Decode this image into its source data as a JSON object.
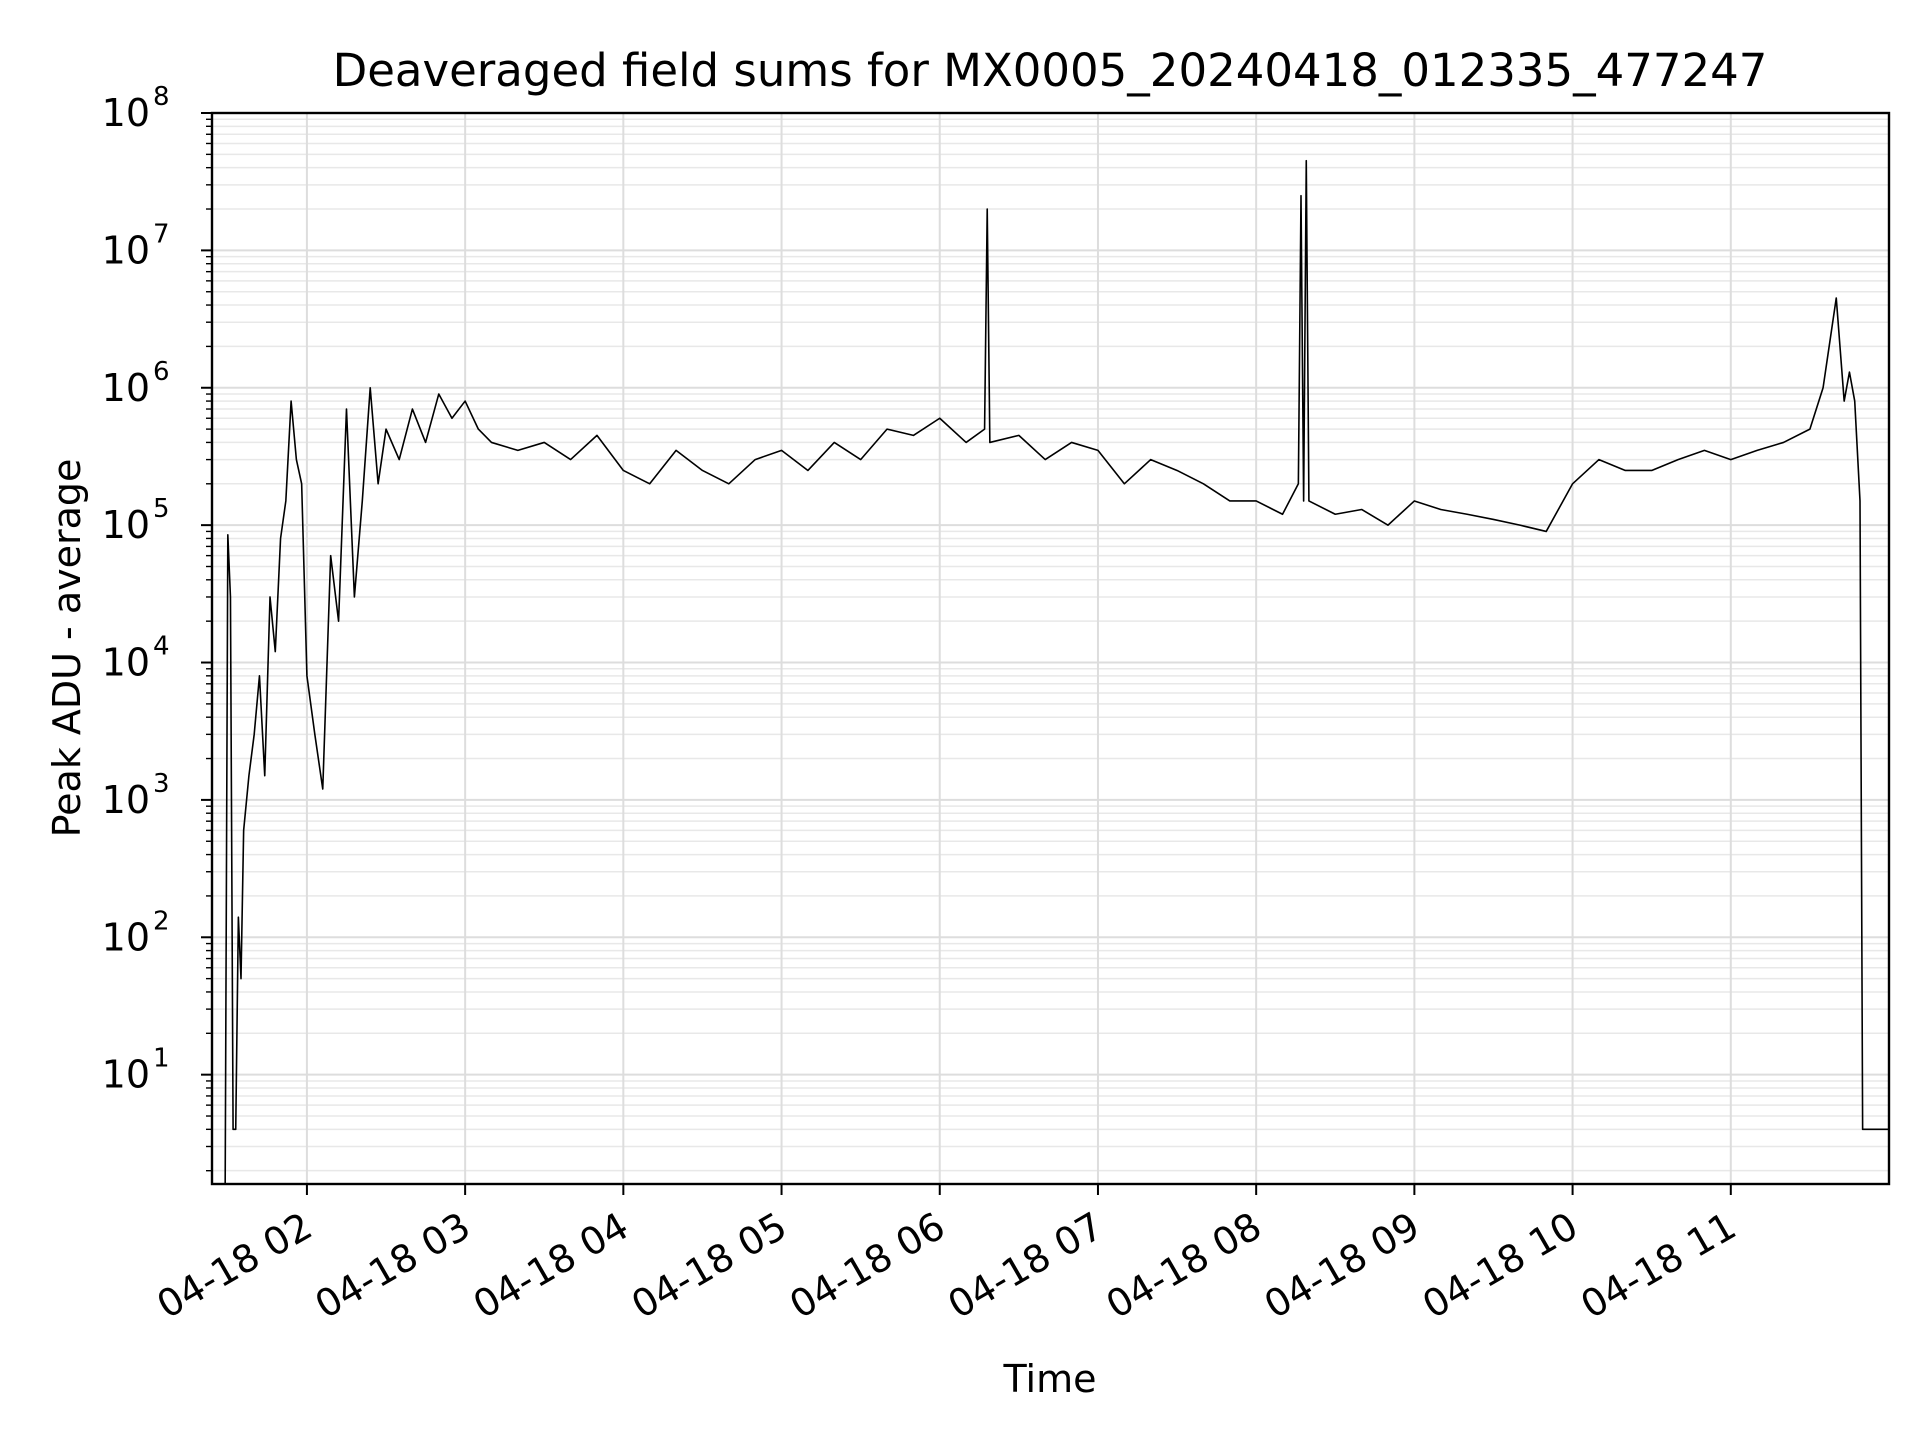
{
  "chart_data": {
    "type": "line",
    "title": "Deaveraged field sums for MX0005_20240418_012335_477247",
    "xlabel": "Time",
    "ylabel": "Peak ADU - average",
    "yscale": "log",
    "ylim": [
      1.6,
      100000000
    ],
    "xlim": [
      "2024-04-18 01:24",
      "2024-04-18 12:00"
    ],
    "grid": true,
    "x_ticks": [
      {
        "value": "2024-04-18 02:00",
        "label": "04-18 02"
      },
      {
        "value": "2024-04-18 03:00",
        "label": "04-18 03"
      },
      {
        "value": "2024-04-18 04:00",
        "label": "04-18 04"
      },
      {
        "value": "2024-04-18 05:00",
        "label": "04-18 05"
      },
      {
        "value": "2024-04-18 06:00",
        "label": "04-18 06"
      },
      {
        "value": "2024-04-18 07:00",
        "label": "04-18 07"
      },
      {
        "value": "2024-04-18 08:00",
        "label": "04-18 08"
      },
      {
        "value": "2024-04-18 09:00",
        "label": "04-18 09"
      },
      {
        "value": "2024-04-18 10:00",
        "label": "04-18 10"
      },
      {
        "value": "2024-04-18 11:00",
        "label": "04-18 11"
      }
    ],
    "y_ticks": [
      {
        "value": 10,
        "base": "10",
        "exp": "1"
      },
      {
        "value": 100,
        "base": "10",
        "exp": "2"
      },
      {
        "value": 1000,
        "base": "10",
        "exp": "3"
      },
      {
        "value": 10000,
        "base": "10",
        "exp": "4"
      },
      {
        "value": 100000,
        "base": "10",
        "exp": "5"
      },
      {
        "value": 1000000,
        "base": "10",
        "exp": "6"
      },
      {
        "value": 10000000,
        "base": "10",
        "exp": "7"
      },
      {
        "value": 100000000,
        "base": "10",
        "exp": "8"
      }
    ],
    "line_color": "#000000",
    "series": [
      {
        "x": [
          "2024-04-18 01:29",
          "2024-04-18 01:30",
          "2024-04-18 01:31",
          "2024-04-18 01:32",
          "2024-04-18 01:33",
          "2024-04-18 01:34",
          "2024-04-18 01:35",
          "2024-04-18 01:36",
          "2024-04-18 01:38",
          "2024-04-18 01:40",
          "2024-04-18 01:42",
          "2024-04-18 01:44",
          "2024-04-18 01:46",
          "2024-04-18 01:48",
          "2024-04-18 01:50",
          "2024-04-18 01:52",
          "2024-04-18 01:54",
          "2024-04-18 01:56",
          "2024-04-18 01:58",
          "2024-04-18 02:00",
          "2024-04-18 02:03",
          "2024-04-18 02:06",
          "2024-04-18 02:09",
          "2024-04-18 02:12",
          "2024-04-18 02:15",
          "2024-04-18 02:18",
          "2024-04-18 02:21",
          "2024-04-18 02:24",
          "2024-04-18 02:27",
          "2024-04-18 02:30",
          "2024-04-18 02:35",
          "2024-04-18 02:40",
          "2024-04-18 02:45",
          "2024-04-18 02:50",
          "2024-04-18 02:55",
          "2024-04-18 03:00",
          "2024-04-18 03:05",
          "2024-04-18 03:10",
          "2024-04-18 03:20",
          "2024-04-18 03:30",
          "2024-04-18 03:40",
          "2024-04-18 03:50",
          "2024-04-18 04:00",
          "2024-04-18 04:10",
          "2024-04-18 04:20",
          "2024-04-18 04:30",
          "2024-04-18 04:40",
          "2024-04-18 04:50",
          "2024-04-18 05:00",
          "2024-04-18 05:10",
          "2024-04-18 05:20",
          "2024-04-18 05:30",
          "2024-04-18 05:40",
          "2024-04-18 05:50",
          "2024-04-18 06:00",
          "2024-04-18 06:10",
          "2024-04-18 06:17",
          "2024-04-18 06:18",
          "2024-04-18 06:19",
          "2024-04-18 06:30",
          "2024-04-18 06:40",
          "2024-04-18 06:50",
          "2024-04-18 07:00",
          "2024-04-18 07:10",
          "2024-04-18 07:20",
          "2024-04-18 07:30",
          "2024-04-18 07:40",
          "2024-04-18 07:50",
          "2024-04-18 08:00",
          "2024-04-18 08:10",
          "2024-04-18 08:16",
          "2024-04-18 08:17",
          "2024-04-18 08:18",
          "2024-04-18 08:19",
          "2024-04-18 08:20",
          "2024-04-18 08:30",
          "2024-04-18 08:40",
          "2024-04-18 08:50",
          "2024-04-18 09:00",
          "2024-04-18 09:10",
          "2024-04-18 09:20",
          "2024-04-18 09:30",
          "2024-04-18 09:40",
          "2024-04-18 09:50",
          "2024-04-18 10:00",
          "2024-04-18 10:10",
          "2024-04-18 10:20",
          "2024-04-18 10:30",
          "2024-04-18 10:40",
          "2024-04-18 10:50",
          "2024-04-18 11:00",
          "2024-04-18 11:10",
          "2024-04-18 11:20",
          "2024-04-18 11:30",
          "2024-04-18 11:35",
          "2024-04-18 11:40",
          "2024-04-18 11:43",
          "2024-04-18 11:45",
          "2024-04-18 11:47",
          "2024-04-18 11:49",
          "2024-04-18 11:50",
          "2024-04-18 11:52",
          "2024-04-18 11:55",
          "2024-04-18 12:00"
        ],
        "y": [
          1.6,
          85000,
          30000,
          4,
          4,
          140,
          50,
          600,
          1500,
          3000,
          8000,
          1500,
          30000,
          12000,
          80000,
          150000,
          800000,
          300000,
          200000,
          8000,
          3000,
          1200,
          60000,
          20000,
          700000,
          30000,
          150000,
          1000000,
          200000,
          500000,
          300000,
          700000,
          400000,
          900000,
          600000,
          800000,
          500000,
          400000,
          350000,
          400000,
          300000,
          450000,
          250000,
          200000,
          350000,
          250000,
          200000,
          300000,
          350000,
          250000,
          400000,
          300000,
          500000,
          450000,
          600000,
          400000,
          500000,
          20000000,
          400000,
          450000,
          300000,
          400000,
          350000,
          200000,
          300000,
          250000,
          200000,
          150000,
          150000,
          120000,
          200000,
          25000000,
          150000,
          45000000,
          150000,
          120000,
          130000,
          100000,
          150000,
          130000,
          120000,
          110000,
          100000,
          90000,
          200000,
          300000,
          250000,
          250000,
          300000,
          350000,
          300000,
          350000,
          400000,
          500000,
          1000000,
          4500000,
          800000,
          1300000,
          800000,
          150000,
          4,
          4,
          4,
          4
        ]
      }
    ]
  }
}
